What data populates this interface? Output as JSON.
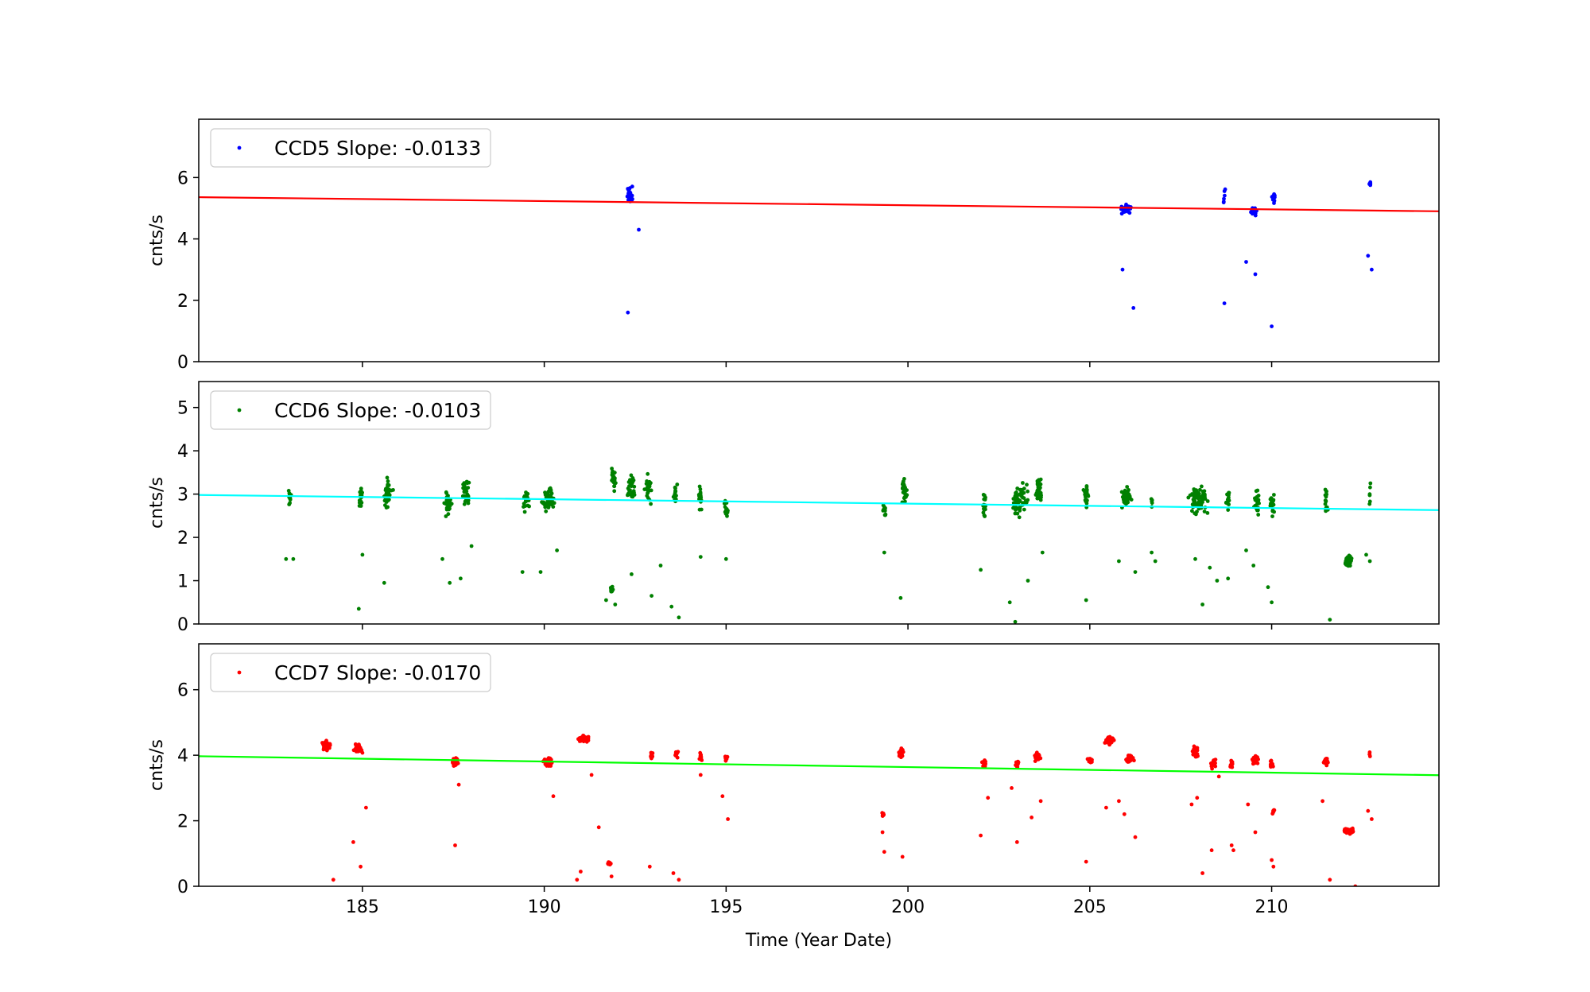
{
  "xlabel": "Time (Year Date)",
  "xlim": [
    180.5,
    214.6
  ],
  "xticks": [
    185,
    190,
    195,
    200,
    205,
    210
  ],
  "chart_data": [
    {
      "type": "scatter",
      "legend": "CCD5 Slope: -0.0133",
      "ylabel": "cnts/s",
      "ylim": [
        0,
        7.9
      ],
      "yticks": [
        0,
        2,
        4,
        6
      ],
      "point_color": "#0000ff",
      "fit_color": "#ff0000",
      "fit": {
        "x": [
          180.5,
          214.6
        ],
        "y": [
          5.36,
          4.9
        ]
      },
      "clusters": [
        {
          "x": 192.35,
          "y": 5.4,
          "n": 26,
          "dx": 0.12,
          "dy": 0.4
        },
        {
          "x": 206.0,
          "y": 5.0,
          "n": 40,
          "dx": 0.18,
          "dy": 0.22
        },
        {
          "x": 208.7,
          "y": 5.5,
          "n": 6,
          "dx": 0.05,
          "dy": 0.4
        },
        {
          "x": 209.5,
          "y": 4.9,
          "n": 22,
          "dx": 0.14,
          "dy": 0.2
        },
        {
          "x": 210.05,
          "y": 5.3,
          "n": 10,
          "dx": 0.06,
          "dy": 0.3
        },
        {
          "x": 212.7,
          "y": 5.75,
          "n": 5,
          "dx": 0.04,
          "dy": 0.2
        }
      ],
      "points": [
        [
          192.3,
          1.6
        ],
        [
          192.6,
          4.3
        ],
        [
          205.9,
          3.0
        ],
        [
          206.2,
          1.75
        ],
        [
          208.7,
          1.9
        ],
        [
          209.3,
          3.25
        ],
        [
          209.55,
          2.85
        ],
        [
          210.0,
          1.15
        ],
        [
          212.65,
          3.45
        ],
        [
          212.75,
          3.0
        ]
      ]
    },
    {
      "type": "scatter",
      "legend": "CCD6 Slope: -0.0103",
      "ylabel": "cnts/s",
      "ylim": [
        0,
        5.6
      ],
      "yticks": [
        0,
        1,
        2,
        3,
        4,
        5
      ],
      "point_color": "#008000",
      "fit_color": "#00ffff",
      "fit": {
        "x": [
          180.5,
          214.6
        ],
        "y": [
          2.98,
          2.63
        ]
      },
      "clusters": [
        {
          "x": 183.0,
          "y": 2.9,
          "n": 12,
          "dx": 0.06,
          "dy": 0.35
        },
        {
          "x": 184.95,
          "y": 2.9,
          "n": 15,
          "dx": 0.06,
          "dy": 0.35
        },
        {
          "x": 185.7,
          "y": 3.0,
          "n": 40,
          "dx": 0.18,
          "dy": 0.45
        },
        {
          "x": 187.35,
          "y": 2.8,
          "n": 30,
          "dx": 0.14,
          "dy": 0.4
        },
        {
          "x": 187.85,
          "y": 3.0,
          "n": 30,
          "dx": 0.14,
          "dy": 0.4
        },
        {
          "x": 189.5,
          "y": 2.9,
          "n": 25,
          "dx": 0.14,
          "dy": 0.4
        },
        {
          "x": 190.1,
          "y": 2.9,
          "n": 50,
          "dx": 0.22,
          "dy": 0.4
        },
        {
          "x": 191.9,
          "y": 3.4,
          "n": 20,
          "dx": 0.1,
          "dy": 0.45
        },
        {
          "x": 192.4,
          "y": 3.2,
          "n": 30,
          "dx": 0.14,
          "dy": 0.45
        },
        {
          "x": 192.85,
          "y": 3.1,
          "n": 25,
          "dx": 0.12,
          "dy": 0.45
        },
        {
          "x": 193.6,
          "y": 3.0,
          "n": 15,
          "dx": 0.06,
          "dy": 0.3
        },
        {
          "x": 194.3,
          "y": 2.9,
          "n": 15,
          "dx": 0.06,
          "dy": 0.35
        },
        {
          "x": 195.0,
          "y": 2.7,
          "n": 15,
          "dx": 0.06,
          "dy": 0.35
        },
        {
          "x": 199.35,
          "y": 2.6,
          "n": 10,
          "dx": 0.05,
          "dy": 0.4
        },
        {
          "x": 199.9,
          "y": 3.1,
          "n": 30,
          "dx": 0.1,
          "dy": 0.45
        },
        {
          "x": 202.1,
          "y": 2.7,
          "n": 20,
          "dx": 0.06,
          "dy": 0.45
        },
        {
          "x": 203.1,
          "y": 2.9,
          "n": 60,
          "dx": 0.3,
          "dy": 0.5
        },
        {
          "x": 203.6,
          "y": 3.1,
          "n": 35,
          "dx": 0.12,
          "dy": 0.5
        },
        {
          "x": 204.9,
          "y": 3.0,
          "n": 25,
          "dx": 0.08,
          "dy": 0.4
        },
        {
          "x": 206.0,
          "y": 2.9,
          "n": 45,
          "dx": 0.18,
          "dy": 0.3
        },
        {
          "x": 206.7,
          "y": 2.8,
          "n": 5,
          "dx": 0.03,
          "dy": 0.2
        },
        {
          "x": 208.0,
          "y": 2.85,
          "n": 80,
          "dx": 0.35,
          "dy": 0.4
        },
        {
          "x": 208.8,
          "y": 2.8,
          "n": 15,
          "dx": 0.08,
          "dy": 0.4
        },
        {
          "x": 209.6,
          "y": 2.8,
          "n": 30,
          "dx": 0.14,
          "dy": 0.35
        },
        {
          "x": 210.0,
          "y": 2.8,
          "n": 25,
          "dx": 0.08,
          "dy": 0.35
        },
        {
          "x": 211.5,
          "y": 2.9,
          "n": 15,
          "dx": 0.06,
          "dy": 0.45
        },
        {
          "x": 212.1,
          "y": 1.45,
          "n": 45,
          "dx": 0.14,
          "dy": 0.18
        },
        {
          "x": 212.7,
          "y": 3.0,
          "n": 6,
          "dx": 0.03,
          "dy": 0.5
        },
        {
          "x": 191.85,
          "y": 0.8,
          "n": 15,
          "dx": 0.05,
          "dy": 0.12
        }
      ],
      "points": [
        [
          182.9,
          1.5
        ],
        [
          183.1,
          1.5
        ],
        [
          184.9,
          0.35
        ],
        [
          185.0,
          1.6
        ],
        [
          185.6,
          0.95
        ],
        [
          187.2,
          1.5
        ],
        [
          187.4,
          0.95
        ],
        [
          187.7,
          1.05
        ],
        [
          188.0,
          1.8
        ],
        [
          189.4,
          1.2
        ],
        [
          189.9,
          1.2
        ],
        [
          190.35,
          1.7
        ],
        [
          191.7,
          0.55
        ],
        [
          191.95,
          0.45
        ],
        [
          192.4,
          1.15
        ],
        [
          192.95,
          0.65
        ],
        [
          193.2,
          1.35
        ],
        [
          193.5,
          0.4
        ],
        [
          193.7,
          0.15
        ],
        [
          194.3,
          1.55
        ],
        [
          195.0,
          1.5
        ],
        [
          199.35,
          1.65
        ],
        [
          199.8,
          0.6
        ],
        [
          202.0,
          1.25
        ],
        [
          202.8,
          0.5
        ],
        [
          202.95,
          0.05
        ],
        [
          203.3,
          1.0
        ],
        [
          203.7,
          1.65
        ],
        [
          204.9,
          0.55
        ],
        [
          205.8,
          1.45
        ],
        [
          206.25,
          1.2
        ],
        [
          206.7,
          1.65
        ],
        [
          206.8,
          1.45
        ],
        [
          207.9,
          1.5
        ],
        [
          208.1,
          0.45
        ],
        [
          208.3,
          1.3
        ],
        [
          208.5,
          1.0
        ],
        [
          208.8,
          1.05
        ],
        [
          209.3,
          1.7
        ],
        [
          209.5,
          1.35
        ],
        [
          209.9,
          0.85
        ],
        [
          210.0,
          0.5
        ],
        [
          211.6,
          0.1
        ],
        [
          212.6,
          1.6
        ],
        [
          212.7,
          1.45
        ]
      ]
    },
    {
      "type": "scatter",
      "legend": "CCD7 Slope: -0.0170",
      "ylabel": "cnts/s",
      "ylim": [
        0,
        7.4
      ],
      "yticks": [
        0,
        2,
        4,
        6
      ],
      "point_color": "#ff0000",
      "fit_color": "#00ff00",
      "fit": {
        "x": [
          180.5,
          214.6
        ],
        "y": [
          3.97,
          3.39
        ]
      },
      "clusters": [
        {
          "x": 184.0,
          "y": 4.3,
          "n": 45,
          "dx": 0.2,
          "dy": 0.18
        },
        {
          "x": 184.9,
          "y": 4.2,
          "n": 35,
          "dx": 0.16,
          "dy": 0.18
        },
        {
          "x": 187.55,
          "y": 3.8,
          "n": 30,
          "dx": 0.1,
          "dy": 0.2
        },
        {
          "x": 190.1,
          "y": 3.8,
          "n": 45,
          "dx": 0.22,
          "dy": 0.2
        },
        {
          "x": 191.1,
          "y": 4.5,
          "n": 35,
          "dx": 0.22,
          "dy": 0.15
        },
        {
          "x": 191.8,
          "y": 0.7,
          "n": 10,
          "dx": 0.08,
          "dy": 0.08
        },
        {
          "x": 192.95,
          "y": 4.0,
          "n": 12,
          "dx": 0.06,
          "dy": 0.15
        },
        {
          "x": 193.65,
          "y": 4.05,
          "n": 12,
          "dx": 0.06,
          "dy": 0.15
        },
        {
          "x": 194.3,
          "y": 3.95,
          "n": 12,
          "dx": 0.08,
          "dy": 0.15
        },
        {
          "x": 195.0,
          "y": 3.9,
          "n": 10,
          "dx": 0.06,
          "dy": 0.12
        },
        {
          "x": 199.3,
          "y": 2.2,
          "n": 10,
          "dx": 0.04,
          "dy": 0.12
        },
        {
          "x": 199.8,
          "y": 4.05,
          "n": 25,
          "dx": 0.1,
          "dy": 0.2
        },
        {
          "x": 202.1,
          "y": 3.75,
          "n": 15,
          "dx": 0.08,
          "dy": 0.15
        },
        {
          "x": 203.0,
          "y": 3.75,
          "n": 15,
          "dx": 0.08,
          "dy": 0.15
        },
        {
          "x": 203.55,
          "y": 3.95,
          "n": 30,
          "dx": 0.12,
          "dy": 0.2
        },
        {
          "x": 205.0,
          "y": 3.85,
          "n": 20,
          "dx": 0.1,
          "dy": 0.12
        },
        {
          "x": 205.55,
          "y": 4.45,
          "n": 45,
          "dx": 0.18,
          "dy": 0.15
        },
        {
          "x": 206.1,
          "y": 3.9,
          "n": 35,
          "dx": 0.16,
          "dy": 0.15
        },
        {
          "x": 207.9,
          "y": 4.1,
          "n": 30,
          "dx": 0.12,
          "dy": 0.2
        },
        {
          "x": 208.4,
          "y": 3.75,
          "n": 20,
          "dx": 0.1,
          "dy": 0.2
        },
        {
          "x": 208.9,
          "y": 3.7,
          "n": 12,
          "dx": 0.06,
          "dy": 0.2
        },
        {
          "x": 209.55,
          "y": 3.85,
          "n": 30,
          "dx": 0.14,
          "dy": 0.2
        },
        {
          "x": 210.0,
          "y": 3.75,
          "n": 15,
          "dx": 0.08,
          "dy": 0.15
        },
        {
          "x": 211.5,
          "y": 3.8,
          "n": 15,
          "dx": 0.08,
          "dy": 0.15
        },
        {
          "x": 212.1,
          "y": 1.7,
          "n": 40,
          "dx": 0.18,
          "dy": 0.12
        },
        {
          "x": 212.7,
          "y": 4.0,
          "n": 4,
          "dx": 0.03,
          "dy": 0.15
        },
        {
          "x": 210.05,
          "y": 2.25,
          "n": 6,
          "dx": 0.04,
          "dy": 0.12
        }
      ],
      "points": [
        [
          184.2,
          0.2
        ],
        [
          184.75,
          1.35
        ],
        [
          184.95,
          0.6
        ],
        [
          185.1,
          2.4
        ],
        [
          187.55,
          1.25
        ],
        [
          187.65,
          3.1
        ],
        [
          190.25,
          2.75
        ],
        [
          190.9,
          0.2
        ],
        [
          191.0,
          0.45
        ],
        [
          191.3,
          3.4
        ],
        [
          191.5,
          1.8
        ],
        [
          191.85,
          0.3
        ],
        [
          192.9,
          0.6
        ],
        [
          193.55,
          0.4
        ],
        [
          193.7,
          0.2
        ],
        [
          194.3,
          3.4
        ],
        [
          194.9,
          2.75
        ],
        [
          195.05,
          2.05
        ],
        [
          199.3,
          1.65
        ],
        [
          199.35,
          1.05
        ],
        [
          199.85,
          0.9
        ],
        [
          202.0,
          1.55
        ],
        [
          202.2,
          2.7
        ],
        [
          202.85,
          3.0
        ],
        [
          203.0,
          1.35
        ],
        [
          203.4,
          2.1
        ],
        [
          203.65,
          2.6
        ],
        [
          204.9,
          0.75
        ],
        [
          205.45,
          2.4
        ],
        [
          205.8,
          2.6
        ],
        [
          205.95,
          2.2
        ],
        [
          206.25,
          1.5
        ],
        [
          207.8,
          2.5
        ],
        [
          207.95,
          2.7
        ],
        [
          208.1,
          0.4
        ],
        [
          208.35,
          1.1
        ],
        [
          208.55,
          3.35
        ],
        [
          208.9,
          1.25
        ],
        [
          208.95,
          1.1
        ],
        [
          209.35,
          2.5
        ],
        [
          209.55,
          1.65
        ],
        [
          210.0,
          0.8
        ],
        [
          210.05,
          0.6
        ],
        [
          211.4,
          2.6
        ],
        [
          211.6,
          0.2
        ],
        [
          212.65,
          2.3
        ],
        [
          212.75,
          2.05
        ],
        [
          212.3,
          0.0
        ]
      ]
    }
  ]
}
